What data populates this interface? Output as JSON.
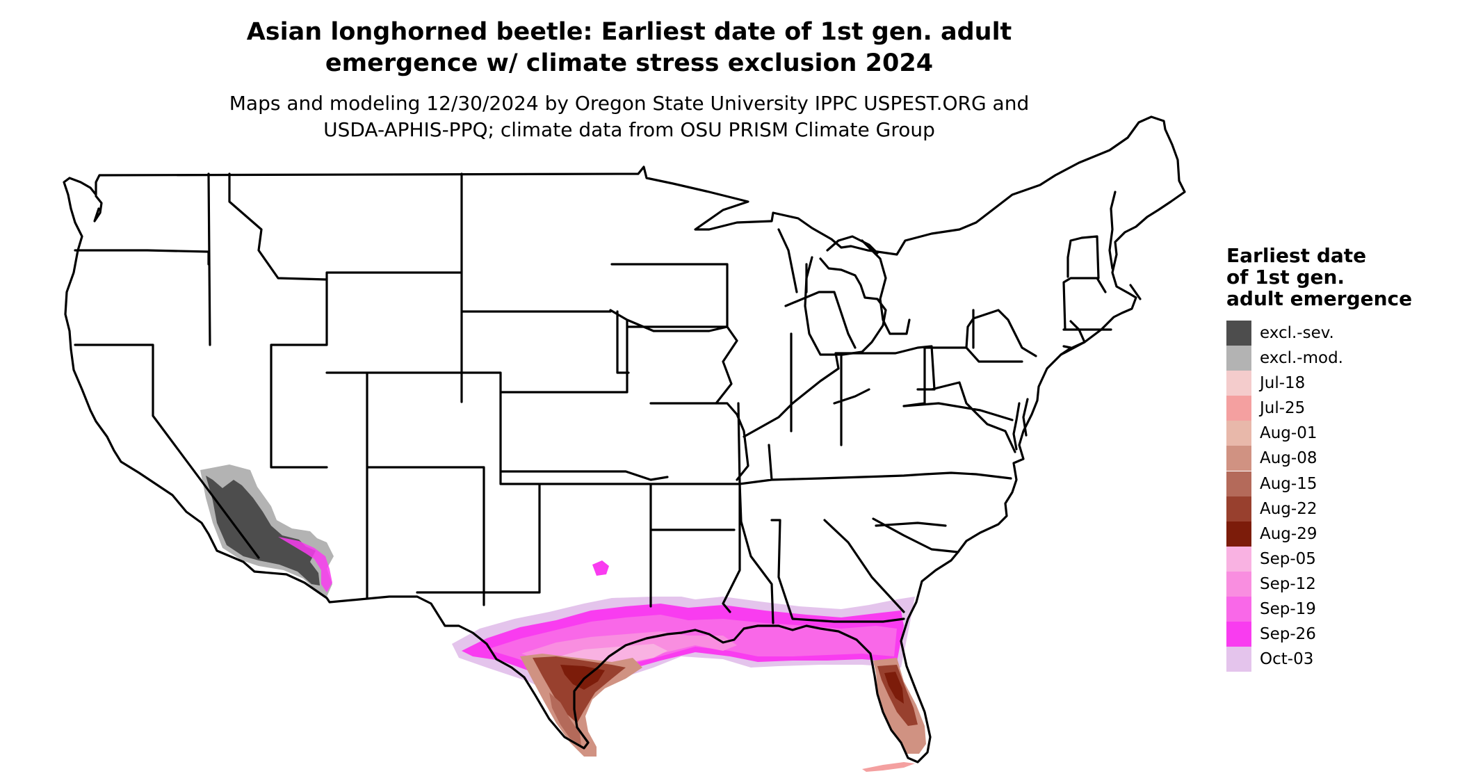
{
  "title_line1": "Asian longhorned beetle: Earliest date of 1st gen. adult",
  "title_line2": "emergence w/ climate stress exclusion 2024",
  "subtitle_line1": "Maps and modeling 12/30/2024 by Oregon State University IPPC USPEST.ORG and",
  "subtitle_line2": "USDA-APHIS-PPQ; climate data from OSU PRISM Climate Group",
  "legend": {
    "title_line1": "Earliest date",
    "title_line2": "of 1st gen.",
    "title_line3": "adult emergence",
    "items": [
      {
        "label": "excl.-sev.",
        "color": "#4d4d4d"
      },
      {
        "label": "excl.-mod.",
        "color": "#b3b3b3"
      },
      {
        "label": "Jul-18",
        "color": "#f4cccc"
      },
      {
        "label": "Jul-25",
        "color": "#f4a0a0"
      },
      {
        "label": "Aug-01",
        "color": "#e8b8aa"
      },
      {
        "label": "Aug-08",
        "color": "#d09282"
      },
      {
        "label": "Aug-15",
        "color": "#b46a5a"
      },
      {
        "label": "Aug-22",
        "color": "#98402e"
      },
      {
        "label": "Aug-29",
        "color": "#7c1c0a"
      },
      {
        "label": "Sep-05",
        "color": "#f9b2e2"
      },
      {
        "label": "Sep-12",
        "color": "#f98ee0"
      },
      {
        "label": "Sep-19",
        "color": "#f968e8"
      },
      {
        "label": "Sep-26",
        "color": "#f93cf0"
      },
      {
        "label": "Oct-03",
        "color": "#e4c4ec"
      }
    ]
  },
  "map": {
    "outline_color": "#000000",
    "background_color": "#ffffff"
  }
}
